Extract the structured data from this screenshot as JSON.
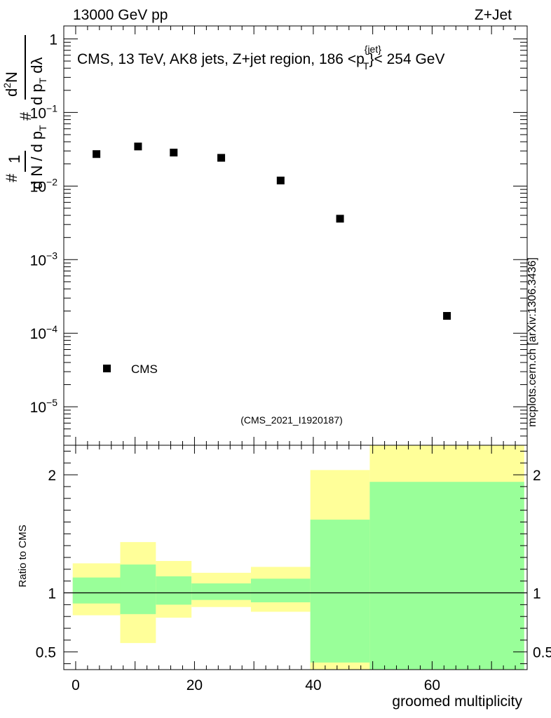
{
  "header": {
    "left": "13000 GeV pp",
    "right": "Z+Jet"
  },
  "sidebar_label": "mcplots.cern.ch [arXiv:1306.3436]",
  "analysis_tag": "(CMS_2021_I1920187)",
  "colors": {
    "band_inner": "#99ff99",
    "band_outer": "#ffff99",
    "analysis_tag": "#999999",
    "marker": "#000000"
  },
  "chart_data": [
    {
      "type": "scatter",
      "title": "CMS, 13 TeV, AK8 jets, Z+jet region, 186 <p_T^{jet}< 254 GeV",
      "ylabel": "1/(dN/dp_T) d²N/(dp_T dλ)",
      "yscale": "log",
      "ylim": [
        3e-06,
        1.5
      ],
      "xlim": [
        -2,
        76
      ],
      "ytick_labels": [
        {
          "base": "1",
          "exp": "",
          "value": 1
        },
        {
          "base": "10",
          "exp": "−1",
          "value": 0.1
        },
        {
          "base": "10",
          "exp": "−2",
          "value": 0.01
        },
        {
          "base": "10",
          "exp": "−3",
          "value": 0.001
        },
        {
          "base": "10",
          "exp": "−4",
          "value": 0.0001
        },
        {
          "base": "10",
          "exp": "−5",
          "value": 1e-05
        }
      ],
      "legend": {
        "position": "bottom-left",
        "entries": [
          "CMS"
        ]
      },
      "series": [
        {
          "name": "CMS",
          "x": [
            3.5,
            10.5,
            16.5,
            24.5,
            34.5,
            44.5,
            62.5
          ],
          "y": [
            0.0272,
            0.0345,
            0.0285,
            0.0242,
            0.0119,
            0.0036,
            0.000172
          ]
        }
      ]
    },
    {
      "type": "area",
      "ylabel": "Ratio to CMS",
      "xlabel": "groomed multiplicity",
      "xlim": [
        -2,
        76
      ],
      "ylim": [
        0.35,
        2.25
      ],
      "x_ticks": [
        "0",
        "20",
        "40",
        "60"
      ],
      "x_tick_values": [
        0,
        20,
        40,
        60
      ],
      "y_ticks": [
        "0.5",
        "1",
        "2"
      ],
      "y_tick_values": [
        0.5,
        1,
        2
      ],
      "reference_line": 1,
      "bins": [
        {
          "x0": -0.5,
          "x1": 7.5,
          "stat_lo": 0.91,
          "stat_hi": 1.13,
          "tot_lo": 0.81,
          "tot_hi": 1.25
        },
        {
          "x0": 7.5,
          "x1": 13.5,
          "stat_lo": 0.82,
          "stat_hi": 1.24,
          "tot_lo": 0.575,
          "tot_hi": 1.43
        },
        {
          "x0": 13.5,
          "x1": 19.5,
          "stat_lo": 0.9,
          "stat_hi": 1.14,
          "tot_lo": 0.79,
          "tot_hi": 1.27
        },
        {
          "x0": 19.5,
          "x1": 29.5,
          "stat_lo": 0.94,
          "stat_hi": 1.08,
          "tot_lo": 0.88,
          "tot_hi": 1.17
        },
        {
          "x0": 29.5,
          "x1": 39.5,
          "stat_lo": 0.92,
          "stat_hi": 1.12,
          "tot_lo": 0.84,
          "tot_hi": 1.22
        },
        {
          "x0": 39.5,
          "x1": 49.5,
          "stat_lo": 0.35,
          "stat_hi": 1.62,
          "tot_lo": 0.35,
          "tot_hi": 2.04,
          "tot_lo_visible": 0.41
        },
        {
          "x0": 49.5,
          "x1": 75.5,
          "stat_lo": 0.35,
          "stat_hi": 1.94,
          "tot_lo": 0.35,
          "tot_hi": 2.25
        }
      ]
    }
  ]
}
